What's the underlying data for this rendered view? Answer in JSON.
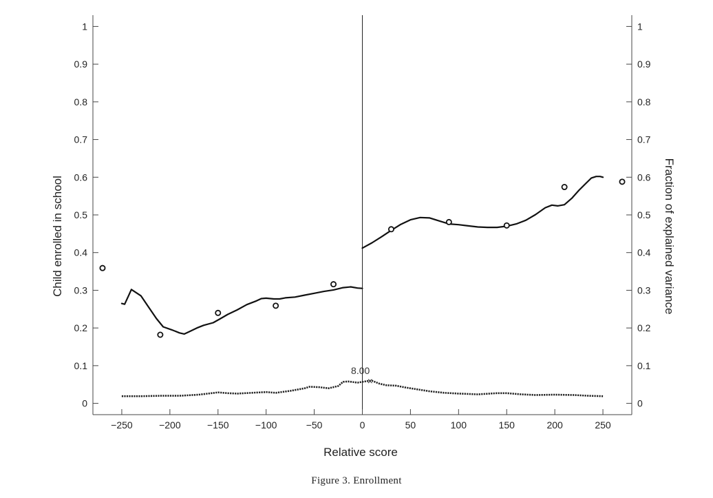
{
  "caption": "Figure 3. Enrollment",
  "chart_data": {
    "type": "line",
    "title": "",
    "xlabel": "Relative score",
    "ylabel": "Child enrolled in school",
    "y2label": "Fraction of explained variance",
    "xlim": [
      -280,
      280
    ],
    "ylim": [
      -0.03,
      1.03
    ],
    "xticks": [
      -250,
      -200,
      -150,
      -100,
      -50,
      0,
      50,
      100,
      150,
      200,
      250
    ],
    "xtick_labels": [
      "−250",
      "−200",
      "−150",
      "−100",
      "−50",
      "0",
      "50",
      "100",
      "150",
      "200",
      "250"
    ],
    "yticks": [
      0,
      0.1,
      0.2,
      0.3,
      0.4,
      0.5,
      0.6,
      0.7,
      0.8,
      0.9,
      1
    ],
    "ytick_labels": [
      "0",
      "0.1",
      "0.2",
      "0.3",
      "0.4",
      "0.5",
      "0.6",
      "0.7",
      "0.8",
      "0.9",
      "1"
    ],
    "cutoff_x": 0,
    "grid": false,
    "series": [
      {
        "style": "solid",
        "segments": [
          [
            [
              -250,
              0.265
            ],
            [
              -247,
              0.263
            ],
            [
              -243,
              0.285
            ],
            [
              -240,
              0.302
            ],
            [
              -237,
              0.297
            ],
            [
              -230,
              0.285
            ],
            [
              -222,
              0.255
            ],
            [
              -214,
              0.225
            ],
            [
              -207,
              0.203
            ],
            [
              -198,
              0.195
            ],
            [
              -190,
              0.187
            ],
            [
              -185,
              0.184
            ],
            [
              -180,
              0.19
            ],
            [
              -172,
              0.2
            ],
            [
              -165,
              0.207
            ],
            [
              -155,
              0.214
            ],
            [
              -148,
              0.224
            ],
            [
              -140,
              0.236
            ],
            [
              -130,
              0.248
            ],
            [
              -120,
              0.262
            ],
            [
              -110,
              0.272
            ],
            [
              -105,
              0.278
            ],
            [
              -100,
              0.279
            ],
            [
              -92,
              0.277
            ],
            [
              -86,
              0.277
            ],
            [
              -80,
              0.28
            ],
            [
              -70,
              0.282
            ],
            [
              -60,
              0.287
            ],
            [
              -50,
              0.292
            ],
            [
              -40,
              0.297
            ],
            [
              -30,
              0.301
            ],
            [
              -20,
              0.307
            ],
            [
              -12,
              0.309
            ],
            [
              -5,
              0.306
            ],
            [
              0,
              0.305
            ]
          ],
          [
            [
              0,
              0.412
            ],
            [
              10,
              0.426
            ],
            [
              20,
              0.442
            ],
            [
              30,
              0.459
            ],
            [
              40,
              0.475
            ],
            [
              50,
              0.487
            ],
            [
              60,
              0.493
            ],
            [
              70,
              0.492
            ],
            [
              80,
              0.484
            ],
            [
              90,
              0.476
            ],
            [
              100,
              0.474
            ],
            [
              110,
              0.471
            ],
            [
              120,
              0.468
            ],
            [
              130,
              0.467
            ],
            [
              140,
              0.467
            ],
            [
              150,
              0.47
            ],
            [
              160,
              0.476
            ],
            [
              170,
              0.486
            ],
            [
              180,
              0.501
            ],
            [
              190,
              0.519
            ],
            [
              197,
              0.526
            ],
            [
              203,
              0.524
            ],
            [
              210,
              0.527
            ],
            [
              218,
              0.545
            ],
            [
              225,
              0.565
            ],
            [
              232,
              0.583
            ],
            [
              238,
              0.598
            ],
            [
              243,
              0.602
            ],
            [
              247,
              0.602
            ],
            [
              250,
              0.6
            ]
          ]
        ]
      },
      {
        "style": "dotted",
        "segments": [
          [
            [
              -250,
              0.019
            ],
            [
              -230,
              0.019
            ],
            [
              -210,
              0.02
            ],
            [
              -190,
              0.02
            ],
            [
              -170,
              0.023
            ],
            [
              -150,
              0.029
            ],
            [
              -140,
              0.027
            ],
            [
              -130,
              0.026
            ],
            [
              -115,
              0.028
            ],
            [
              -100,
              0.03
            ],
            [
              -90,
              0.028
            ],
            [
              -75,
              0.033
            ],
            [
              -60,
              0.04
            ],
            [
              -55,
              0.044
            ],
            [
              -45,
              0.043
            ],
            [
              -35,
              0.04
            ],
            [
              -25,
              0.046
            ],
            [
              -20,
              0.057
            ],
            [
              -15,
              0.058
            ],
            [
              -5,
              0.055
            ],
            [
              0,
              0.057
            ],
            [
              5,
              0.059
            ],
            [
              10,
              0.06
            ],
            [
              18,
              0.052
            ],
            [
              25,
              0.048
            ],
            [
              35,
              0.047
            ],
            [
              45,
              0.042
            ],
            [
              55,
              0.038
            ],
            [
              70,
              0.032
            ],
            [
              85,
              0.028
            ],
            [
              100,
              0.026
            ],
            [
              120,
              0.024
            ],
            [
              140,
              0.027
            ],
            [
              150,
              0.027
            ],
            [
              165,
              0.024
            ],
            [
              180,
              0.022
            ],
            [
              200,
              0.023
            ],
            [
              220,
              0.022
            ],
            [
              235,
              0.02
            ],
            [
              250,
              0.019
            ]
          ]
        ]
      }
    ],
    "points": [
      {
        "x": -270,
        "y": 0.359
      },
      {
        "x": -210,
        "y": 0.182
      },
      {
        "x": -150,
        "y": 0.24
      },
      {
        "x": -90,
        "y": 0.259
      },
      {
        "x": -30,
        "y": 0.316
      },
      {
        "x": 30,
        "y": 0.462
      },
      {
        "x": 90,
        "y": 0.481
      },
      {
        "x": 150,
        "y": 0.472
      },
      {
        "x": 210,
        "y": 0.574
      },
      {
        "x": 270,
        "y": 0.588
      }
    ],
    "annotation": {
      "text": "8.00",
      "x": 8,
      "y": 0.06,
      "marker": "×"
    }
  }
}
